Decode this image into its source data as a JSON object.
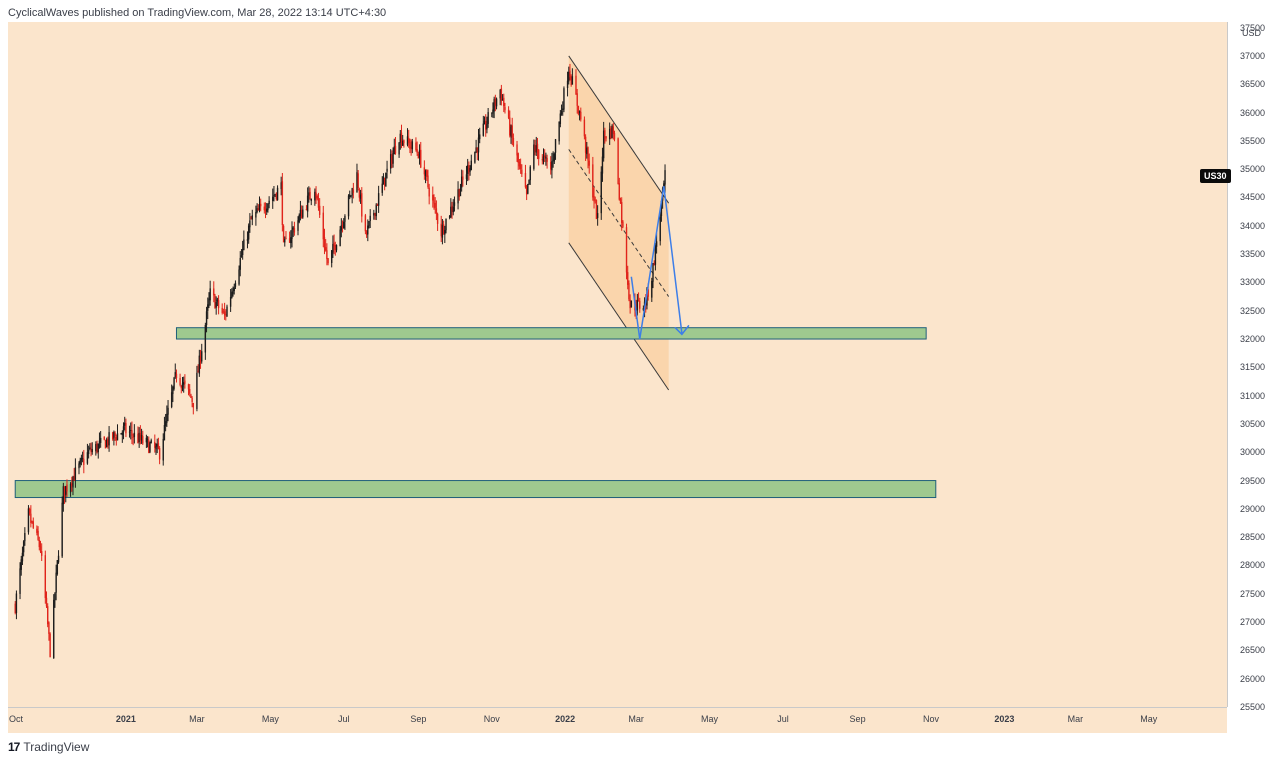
{
  "header": {
    "text": "CyclicalWaves published on TradingView.com, Mar 28, 2022 13:14 UTC+4:30"
  },
  "footer": {
    "logo_glyph": "17",
    "brand": "TradingView"
  },
  "colors": {
    "background": "#fbe5cc",
    "candle_up": "#1c1c1c",
    "candle_down": "#e0241b",
    "zone_fill": "#9fc98f",
    "zone_border": "#1f5f7a",
    "channel_fill": "#f9d2a6",
    "projection": "#3d7ee8"
  },
  "chart_data": {
    "type": "candlestick",
    "symbol": "US30",
    "currency": "USD",
    "ylim": [
      25500,
      37600
    ],
    "y_ticks": [
      "37500",
      "37000",
      "36500",
      "36000",
      "35500",
      "35000",
      "34500",
      "34000",
      "33500",
      "33000",
      "32500",
      "32000",
      "31500",
      "31000",
      "30500",
      "30000",
      "29500",
      "29000",
      "28500",
      "28000",
      "27500",
      "27000",
      "26500",
      "26000",
      "25500"
    ],
    "x_ticks": [
      "Oct",
      "2021",
      "Mar",
      "May",
      "Jul",
      "Sep",
      "Nov",
      "2022",
      "Mar",
      "May",
      "Jul",
      "Sep",
      "Nov",
      "2023",
      "Mar",
      "May"
    ],
    "last_price_label": "US30",
    "last_price": 34860,
    "path": [
      [
        "2020-10-01",
        27300
      ],
      [
        "2020-10-12",
        28900
      ],
      [
        "2020-10-22",
        28300
      ],
      [
        "2020-10-30",
        26500
      ],
      [
        "2020-11-10",
        29300
      ],
      [
        "2020-12-01",
        30000
      ],
      [
        "2020-12-31",
        30400
      ],
      [
        "2021-01-29",
        30000
      ],
      [
        "2021-02-12",
        31400
      ],
      [
        "2021-02-26",
        30900
      ],
      [
        "2021-03-12",
        32800
      ],
      [
        "2021-03-24",
        32400
      ],
      [
        "2021-04-15",
        34100
      ],
      [
        "2021-05-10",
        34700
      ],
      [
        "2021-05-12",
        33600
      ],
      [
        "2021-06-07",
        34700
      ],
      [
        "2021-06-18",
        33300
      ],
      [
        "2021-07-12",
        34900
      ],
      [
        "2021-07-19",
        33800
      ],
      [
        "2021-08-16",
        35600
      ],
      [
        "2021-09-01",
        35300
      ],
      [
        "2021-09-20",
        33900
      ],
      [
        "2021-10-08",
        34800
      ],
      [
        "2021-11-08",
        36400
      ],
      [
        "2021-11-30",
        34500
      ],
      [
        "2021-12-06",
        35400
      ],
      [
        "2021-12-20",
        35000
      ],
      [
        "2022-01-04",
        36800
      ],
      [
        "2022-01-14",
        35900
      ],
      [
        "2022-01-28",
        34100
      ],
      [
        "2022-02-02",
        35600
      ],
      [
        "2022-02-10",
        35700
      ],
      [
        "2022-02-24",
        32600
      ],
      [
        "2022-03-08",
        32600
      ],
      [
        "2022-03-14",
        33100
      ],
      [
        "2022-03-25",
        34860
      ]
    ],
    "support_zones": [
      {
        "x0": "2021-02-12",
        "x1": "2022-10-28",
        "y0": 32000,
        "y1": 32200
      },
      {
        "x0": "2020-10-01",
        "x1": "2022-11-05",
        "y0": 29200,
        "y1": 29500
      }
    ],
    "descending_channel": {
      "upper": [
        [
          "2022-01-04",
          37000
        ],
        [
          "2022-03-28",
          34400
        ]
      ],
      "lower": [
        [
          "2022-01-04",
          33700
        ],
        [
          "2022-03-28",
          31100
        ]
      ],
      "mid": [
        [
          "2022-01-04",
          35350
        ],
        [
          "2022-03-28",
          32750
        ]
      ],
      "shade": {
        "x0": "2022-01-04",
        "x1": "2022-03-28"
      }
    },
    "projection_path": [
      [
        "2022-02-25",
        33100
      ],
      [
        "2022-03-04",
        32000
      ],
      [
        "2022-03-24",
        34700
      ],
      [
        "2022-04-08",
        32100
      ]
    ]
  }
}
